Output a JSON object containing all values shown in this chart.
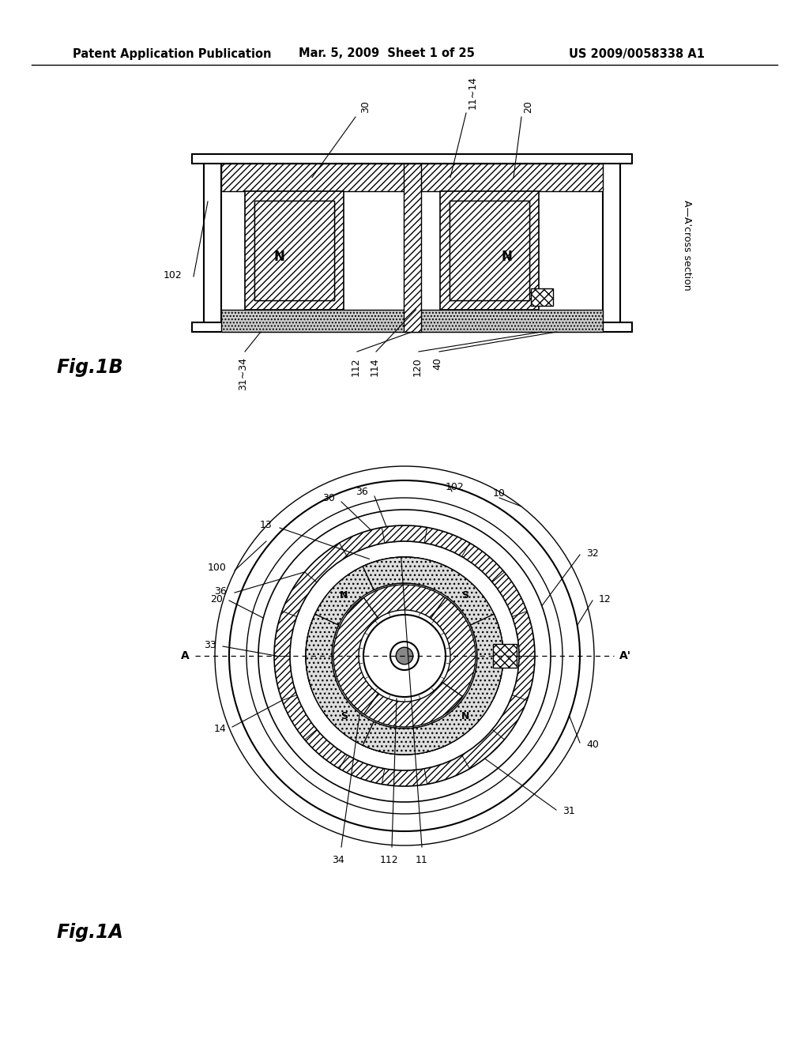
{
  "bg_color": "#ffffff",
  "line_color": "#000000",
  "header_left": "Patent Application Publication",
  "header_mid": "Mar. 5, 2009  Sheet 1 of 25",
  "header_right": "US 2009/0058338 A1",
  "fig1b_text": "Fig.1B",
  "fig1a_text": "Fig.1A",
  "cross_section": "A—A'cross section"
}
